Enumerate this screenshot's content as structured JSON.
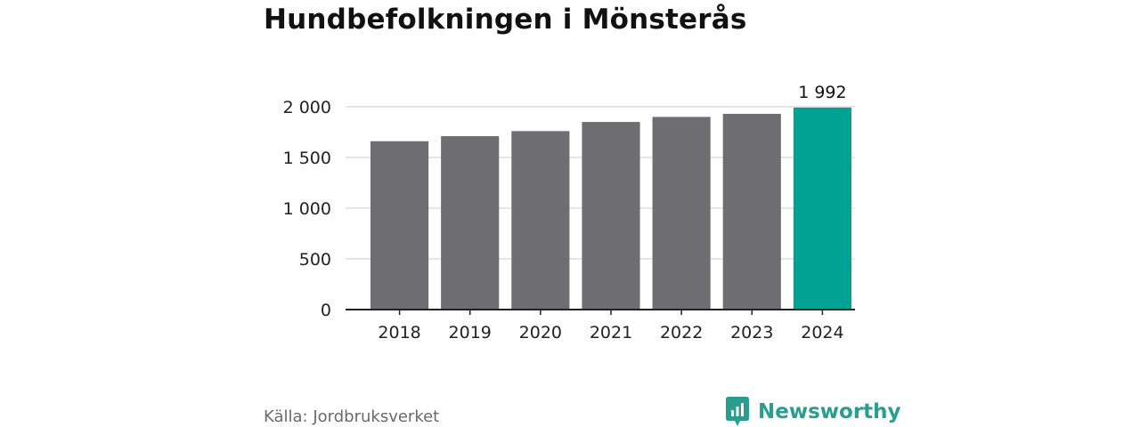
{
  "title": "Hundbefolkningen i Mönsterås",
  "source": "Källa: Jordbruksverket",
  "brand": {
    "name": "Newsworthy",
    "icon": "newsworthy-logo-icon",
    "color": "#2a9d8f"
  },
  "chart_data": {
    "type": "bar",
    "title": "Hundbefolkningen i Mönsterås",
    "xlabel": "",
    "ylabel": "",
    "categories": [
      "2018",
      "2019",
      "2020",
      "2021",
      "2022",
      "2023",
      "2024"
    ],
    "values": [
      1660,
      1710,
      1760,
      1850,
      1900,
      1930,
      1992
    ],
    "ylim": [
      0,
      2000
    ],
    "yticks": [
      0,
      500,
      1000,
      1500,
      2000
    ],
    "ytick_labels": [
      "0",
      "500",
      "1 000",
      "1 500",
      "2 000"
    ],
    "data_labels": [
      {
        "category": "2024",
        "text": "1 992"
      }
    ],
    "grid": true,
    "legend": "none",
    "colors": {
      "default": "#6e6d72",
      "highlight": "#00a294",
      "grid": "#dddddd",
      "axis": "#222222"
    },
    "highlight_category": "2024"
  }
}
